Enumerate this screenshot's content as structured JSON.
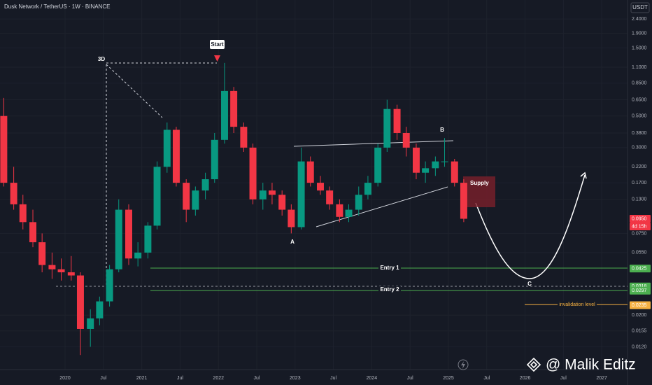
{
  "chart_data": {
    "type": "candlestick",
    "title": "Dusk Network / TetherUS · 1W · BINANCE",
    "unit": "USDT",
    "log_scale": true,
    "grid": true,
    "up_color": "#089981",
    "down_color": "#f23645",
    "xlim": [
      2019.151,
      2027.336
    ],
    "xticks": [
      {
        "value": 2020,
        "label": "2020"
      },
      {
        "value": 2020.5,
        "label": "Jul"
      },
      {
        "value": 2021,
        "label": "2021"
      },
      {
        "value": 2021.5,
        "label": "Jul"
      },
      {
        "value": 2022,
        "label": "2022"
      },
      {
        "value": 2022.5,
        "label": "Jul"
      },
      {
        "value": 2023,
        "label": "2023"
      },
      {
        "value": 2023.5,
        "label": "Jul"
      },
      {
        "value": 2024,
        "label": "2024"
      },
      {
        "value": 2024.5,
        "label": "Jul"
      },
      {
        "value": 2025,
        "label": "2025"
      },
      {
        "value": 2025.5,
        "label": "Jul"
      },
      {
        "value": 2026,
        "label": "2026"
      },
      {
        "value": 2026.5,
        "label": "Jul"
      },
      {
        "value": 2027,
        "label": "2027"
      }
    ],
    "ylim": [
      0.0083,
      3.26
    ],
    "yticks": [
      {
        "value": 2.4,
        "label": "2.4000"
      },
      {
        "value": 1.9,
        "label": "1.9000"
      },
      {
        "value": 1.5,
        "label": "1.5000"
      },
      {
        "value": 1.1,
        "label": "1.1000"
      },
      {
        "value": 0.85,
        "label": "0.8500"
      },
      {
        "value": 0.65,
        "label": "0.6500"
      },
      {
        "value": 0.5,
        "label": "0.5000"
      },
      {
        "value": 0.38,
        "label": "0.3800"
      },
      {
        "value": 0.3,
        "label": "0.3000"
      },
      {
        "value": 0.22,
        "label": "0.2200"
      },
      {
        "value": 0.17,
        "label": "0.1700"
      },
      {
        "value": 0.13,
        "label": "0.1300"
      },
      {
        "value": 0.095,
        "label": "0.0950",
        "color": "#f23645"
      },
      {
        "value": 0.075,
        "label": "0.0750"
      },
      {
        "value": 0.055,
        "label": "0.0550"
      },
      {
        "value": 0.0425,
        "label": "0.0425",
        "color": "#4caf50"
      },
      {
        "value": 0.0318,
        "label": "0.0318",
        "color": "#4caf50"
      },
      {
        "value": 0.0297,
        "label": "0.0297",
        "color": "#4caf50"
      },
      {
        "value": 0.0235,
        "label": "0.0235",
        "color": "#f5b041"
      },
      {
        "value": 0.02,
        "label": "0.0200"
      },
      {
        "value": 0.0155,
        "label": "0.0155"
      },
      {
        "value": 0.012,
        "label": "0.0120"
      }
    ],
    "countdown": "4d 15h",
    "x": [
      2019.2,
      2019.33,
      2019.45,
      2019.58,
      2019.7,
      2019.83,
      2019.95,
      2020.08,
      2020.2,
      2020.33,
      2020.45,
      2020.58,
      2020.7,
      2020.83,
      2020.95,
      2021.08,
      2021.2,
      2021.33,
      2021.45,
      2021.58,
      2021.7,
      2021.83,
      2021.95,
      2022.08,
      2022.2,
      2022.33,
      2022.45,
      2022.58,
      2022.7,
      2022.83,
      2022.95,
      2023.08,
      2023.2,
      2023.33,
      2023.45,
      2023.58,
      2023.7,
      2023.83,
      2023.95,
      2024.08,
      2024.2,
      2024.33,
      2024.45,
      2024.58,
      2024.7,
      2024.83,
      2024.95,
      2025.08,
      2025.2
    ],
    "open": [
      0.5,
      0.17,
      0.12,
      0.09,
      0.065,
      0.045,
      0.042,
      0.04,
      0.038,
      0.016,
      0.019,
      0.025,
      0.042,
      0.11,
      0.05,
      0.055,
      0.085,
      0.22,
      0.4,
      0.17,
      0.11,
      0.15,
      0.18,
      0.34,
      0.75,
      0.42,
      0.3,
      0.13,
      0.15,
      0.14,
      0.11,
      0.083,
      0.24,
      0.17,
      0.15,
      0.12,
      0.098,
      0.11,
      0.14,
      0.17,
      0.3,
      0.56,
      0.38,
      0.3,
      0.2,
      0.215,
      0.24,
      0.24,
      0.17
    ],
    "high": [
      0.67,
      0.22,
      0.14,
      0.11,
      0.075,
      0.055,
      0.05,
      0.052,
      0.04,
      0.022,
      0.027,
      0.045,
      0.13,
      0.12,
      0.065,
      0.09,
      0.24,
      0.45,
      0.42,
      0.18,
      0.16,
      0.2,
      0.38,
      1.18,
      0.8,
      0.45,
      0.32,
      0.17,
      0.17,
      0.15,
      0.12,
      0.3,
      0.26,
      0.19,
      0.16,
      0.13,
      0.12,
      0.16,
      0.19,
      0.32,
      0.65,
      0.6,
      0.42,
      0.32,
      0.24,
      0.26,
      0.35,
      0.25,
      0.18
    ],
    "low": [
      0.16,
      0.11,
      0.08,
      0.06,
      0.04,
      0.036,
      0.035,
      0.035,
      0.0105,
      0.012,
      0.017,
      0.023,
      0.04,
      0.045,
      0.044,
      0.05,
      0.08,
      0.2,
      0.16,
      0.09,
      0.1,
      0.13,
      0.17,
      0.32,
      0.38,
      0.28,
      0.12,
      0.11,
      0.12,
      0.1,
      0.075,
      0.08,
      0.16,
      0.14,
      0.11,
      0.09,
      0.09,
      0.1,
      0.13,
      0.16,
      0.28,
      0.34,
      0.26,
      0.18,
      0.17,
      0.19,
      0.22,
      0.16,
      0.09
    ],
    "close": [
      0.17,
      0.12,
      0.09,
      0.065,
      0.045,
      0.042,
      0.04,
      0.038,
      0.016,
      0.019,
      0.025,
      0.042,
      0.11,
      0.05,
      0.055,
      0.085,
      0.22,
      0.4,
      0.17,
      0.11,
      0.15,
      0.18,
      0.34,
      0.75,
      0.42,
      0.3,
      0.13,
      0.15,
      0.14,
      0.11,
      0.083,
      0.24,
      0.17,
      0.15,
      0.12,
      0.098,
      0.11,
      0.14,
      0.17,
      0.3,
      0.56,
      0.38,
      0.3,
      0.2,
      0.215,
      0.24,
      0.24,
      0.17,
      0.095
    ],
    "annotations": [
      "3D",
      "Start",
      "A",
      "B",
      "C",
      "Supply",
      "Entry 1",
      "Entry 2",
      "invalidation level"
    ],
    "watermark": "@ Malik Editz"
  }
}
